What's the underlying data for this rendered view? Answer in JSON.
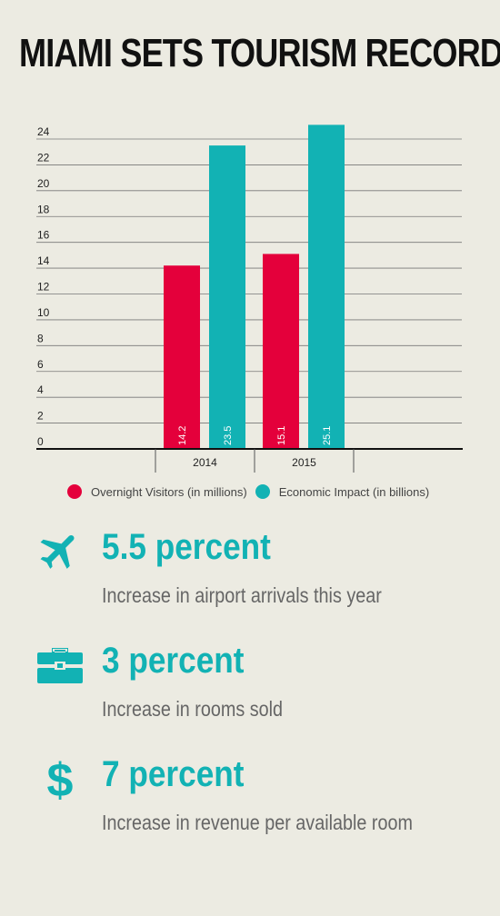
{
  "title": "MIAMI SETS TOURISM RECORD",
  "colors": {
    "visitors": "#e4003b",
    "impact": "#12b2b4",
    "accent": "#12b2b4"
  },
  "chart_data": {
    "type": "bar",
    "categories": [
      "2014",
      "2015"
    ],
    "series": [
      {
        "name": "Overnight Visitors (in millions)",
        "values": [
          14.2,
          15.1
        ],
        "labels": [
          "14.2",
          "15.1"
        ]
      },
      {
        "name": "Economic Impact (in billions)",
        "values": [
          23.5,
          25.1
        ],
        "labels": [
          "23.5",
          "25.1"
        ]
      }
    ],
    "yticks": [
      "0",
      "2",
      "4",
      "6",
      "8",
      "10",
      "12",
      "14",
      "16",
      "18",
      "20",
      "22",
      "24"
    ],
    "ylim": [
      0,
      24
    ],
    "grid": true,
    "legend": "bottom"
  },
  "legend": [
    {
      "label": "Overnight Visitors (in millions)"
    },
    {
      "label": "Economic Impact (in billions)"
    }
  ],
  "stats": [
    {
      "value": "5.5 percent",
      "description": "Increase in airport arrivals this year",
      "icon": "airplane-icon"
    },
    {
      "value": "3 percent",
      "description": "Increase in rooms sold",
      "icon": "briefcase-icon"
    },
    {
      "value": "7 percent",
      "description": "Increase in revenue per available room",
      "icon": "dollar-icon"
    }
  ]
}
